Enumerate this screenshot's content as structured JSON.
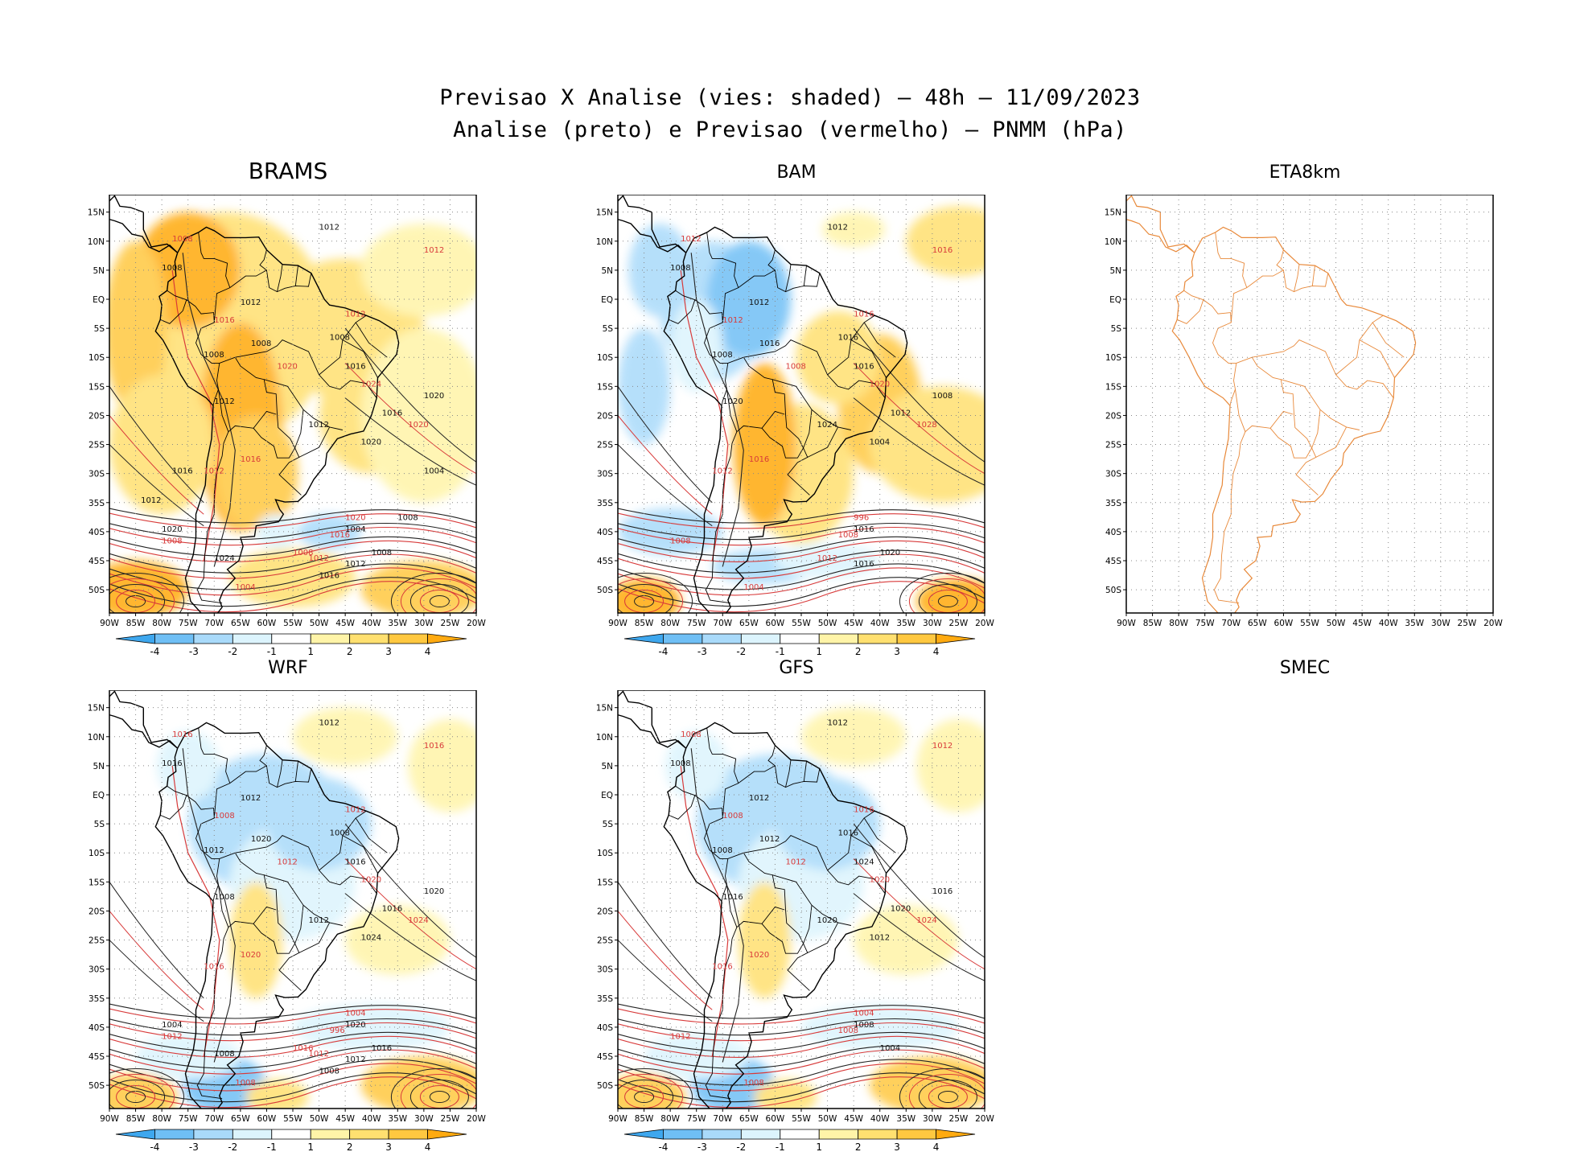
{
  "header": {
    "line1": "Previsao X Analise (vies: shaded) – 48h – 11/09/2023",
    "line2": "Analise (preto) e Previsao (vermelho) – PNMM (hPa)"
  },
  "axes": {
    "lat_labels": [
      "15N",
      "10N",
      "5N",
      "EQ",
      "5S",
      "10S",
      "15S",
      "20S",
      "25S",
      "30S",
      "35S",
      "40S",
      "45S",
      "50S"
    ],
    "lon_labels": [
      "90W",
      "85W",
      "80W",
      "75W",
      "70W",
      "65W",
      "60W",
      "55W",
      "50W",
      "45W",
      "40W",
      "35W",
      "30W",
      "25W",
      "20W"
    ]
  },
  "colorbar": {
    "ticks": [
      "-4",
      "-3",
      "-2",
      "-1",
      "1",
      "2",
      "3",
      "4"
    ],
    "colors": [
      "#3ea7ee",
      "#6fbff5",
      "#a9dafa",
      "#dcf4fd",
      "#ffffff",
      "#fff4a8",
      "#ffe070",
      "#ffc840",
      "#ffaa10"
    ]
  },
  "panels": [
    {
      "name": "BRAMS",
      "bias": "warm",
      "isobars_analysis": [
        "1012",
        "1012",
        "1008",
        "1008",
        "1008",
        "1008",
        "1012",
        "1012",
        "1016",
        "1016",
        "1020",
        "1020",
        "1004",
        "1008",
        "1012",
        "1016",
        "1020",
        "1024",
        "1016",
        "1012",
        "1008",
        "1004"
      ],
      "isobars_forecast": [
        "1012",
        "1012",
        "1008",
        "1016",
        "1020",
        "1024",
        "1020",
        "1016",
        "1012",
        "1008",
        "1004",
        "1020",
        "1016",
        "1012",
        "1008"
      ]
    },
    {
      "name": "BAM",
      "bias": "mixed",
      "isobars_analysis": [
        "1012",
        "1012",
        "1008",
        "1008",
        "1016",
        "1016",
        "1020",
        "1024",
        "1016",
        "1012",
        "1008",
        "1004",
        "1016",
        "1020",
        "1016"
      ],
      "isobars_forecast": [
        "1016",
        "1016",
        "1012",
        "1012",
        "1008",
        "1020",
        "1028",
        "1016",
        "1012",
        "1008",
        "1004",
        "996",
        "1008",
        "1012"
      ]
    },
    {
      "name": "ETA8km",
      "bias": "none",
      "isobars_analysis": [],
      "isobars_forecast": []
    },
    {
      "name": "WRF",
      "bias": "cool",
      "isobars_analysis": [
        "1012",
        "1012",
        "1016",
        "1012",
        "1020",
        "1008",
        "1008",
        "1012",
        "1016",
        "1016",
        "1020",
        "1024",
        "1020",
        "1016",
        "1012",
        "1008",
        "1004",
        "1008"
      ],
      "isobars_forecast": [
        "1012",
        "1016",
        "1016",
        "1008",
        "1012",
        "1020",
        "1024",
        "1020",
        "1016",
        "1012",
        "1008",
        "1004",
        "996",
        "1012",
        "1016"
      ]
    },
    {
      "name": "GFS",
      "bias": "cool",
      "isobars_analysis": [
        "1012",
        "1012",
        "1008",
        "1008",
        "1012",
        "1016",
        "1016",
        "1020",
        "1024",
        "1020",
        "1016",
        "1012",
        "1008",
        "1004"
      ],
      "isobars_forecast": [
        "1016",
        "1012",
        "1008",
        "1008",
        "1012",
        "1020",
        "1024",
        "1020",
        "1016",
        "1012",
        "1008",
        "1004",
        "1008"
      ]
    },
    {
      "name": "SMEC",
      "bias": "empty",
      "isobars_analysis": [],
      "isobars_forecast": []
    }
  ]
}
